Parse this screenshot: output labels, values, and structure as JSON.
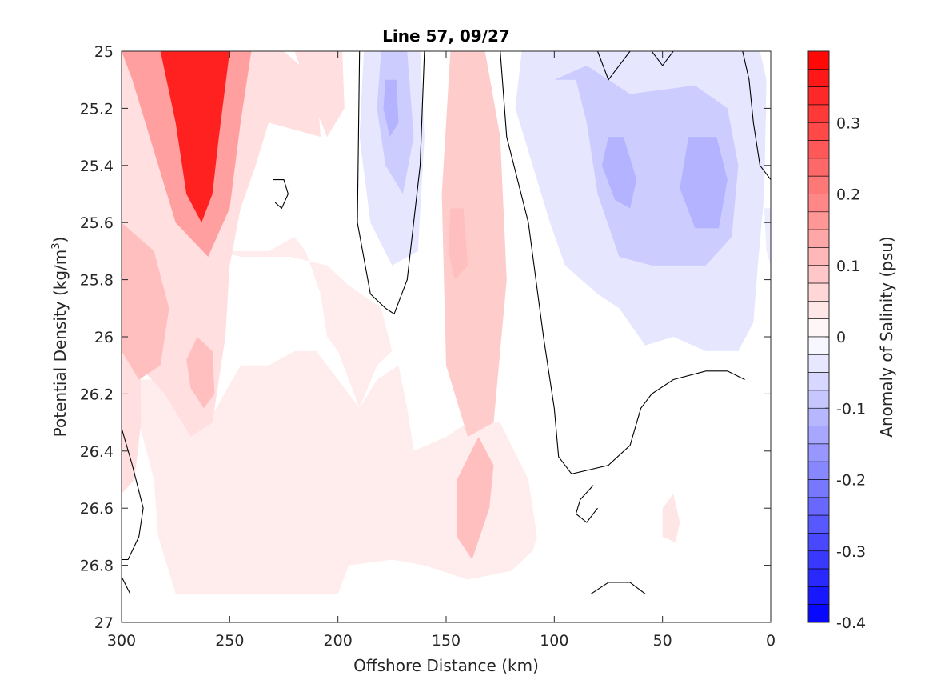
{
  "chart_data": {
    "type": "heatmap",
    "subtype": "filled-contour",
    "title": "Line 57, 09/27",
    "xlabel": "Offshore Distance (km)",
    "ylabel_main": "Potential Density (kg/m",
    "ylabel_sup": "3",
    "ylabel_close": ")",
    "colorbar_label": "Anomaly of Salinity (psu)",
    "xlim": [
      300,
      0
    ],
    "x_reversed": true,
    "ylim": [
      25,
      27
    ],
    "y_reversed": true,
    "x_ticks": [
      300,
      250,
      200,
      150,
      100,
      50,
      0
    ],
    "x_tick_labels": [
      "300",
      "250",
      "200",
      "150",
      "100",
      "50",
      "0"
    ],
    "y_ticks": [
      25,
      25.2,
      25.4,
      25.6,
      25.8,
      26,
      26.2,
      26.4,
      26.6,
      26.8,
      27
    ],
    "y_tick_labels": [
      "25",
      "25.2",
      "25.4",
      "25.6",
      "25.8",
      "26",
      "26.2",
      "26.4",
      "26.6",
      "26.8",
      "27"
    ],
    "clim": [
      -0.4,
      0.4
    ],
    "color_levels": 32,
    "colorbar_ticks": [
      0.3,
      0.2,
      0.1,
      0,
      -0.1,
      -0.2,
      -0.3,
      -0.4
    ],
    "colorbar_tick_labels": [
      "0.3",
      "0.2",
      "0.1",
      "0",
      "-0.1",
      "-0.2",
      "-0.3",
      "-0.4"
    ],
    "colormap": {
      "negative": "#0000ff",
      "zero": "#ffffff",
      "positive": "#ff0000"
    },
    "grid": false,
    "regions": [
      {
        "kind": "pos",
        "level": 0.35,
        "outline": [
          [
            282,
            25
          ],
          [
            250,
            25
          ],
          [
            255,
            25.3
          ],
          [
            258,
            25.5
          ],
          [
            263,
            25.6
          ],
          [
            270,
            25.5
          ],
          [
            275,
            25.25
          ]
        ]
      },
      {
        "kind": "pos",
        "level": 0.15,
        "outline": [
          [
            300,
            25
          ],
          [
            240,
            25
          ],
          [
            245,
            25.25
          ],
          [
            250,
            25.55
          ],
          [
            260,
            25.72
          ],
          [
            275,
            25.6
          ],
          [
            285,
            25.35
          ],
          [
            295,
            25.1
          ]
        ]
      },
      {
        "kind": "pos",
        "level": 0.1,
        "outline": [
          [
            300,
            25.6
          ],
          [
            285,
            25.7
          ],
          [
            278,
            25.9
          ],
          [
            282,
            26.1
          ],
          [
            292,
            26.15
          ],
          [
            300,
            26.05
          ]
        ]
      },
      {
        "kind": "pos",
        "level": 0.1,
        "outline": [
          [
            265,
            26.0
          ],
          [
            258,
            26.05
          ],
          [
            257,
            26.2
          ],
          [
            262,
            26.25
          ],
          [
            268,
            26.18
          ],
          [
            270,
            26.08
          ]
        ]
      },
      {
        "kind": "pos",
        "level": 0.05,
        "outline": [
          [
            300,
            25
          ],
          [
            225,
            25
          ],
          [
            210,
            25.1
          ],
          [
            208,
            25.3
          ],
          [
            232,
            25.25
          ],
          [
            238,
            25.4
          ],
          [
            245,
            25.55
          ],
          [
            250,
            25.75
          ],
          [
            252,
            26
          ],
          [
            258,
            26.3
          ],
          [
            268,
            26.35
          ],
          [
            280,
            26.2
          ],
          [
            292,
            26.1
          ],
          [
            300,
            26.15
          ]
        ]
      },
      {
        "kind": "pos",
        "level": 0.05,
        "outline": [
          [
            220,
            25
          ],
          [
            198,
            25
          ],
          [
            197,
            25.2
          ],
          [
            205,
            25.3
          ],
          [
            213,
            25.15
          ]
        ]
      },
      {
        "kind": "pos",
        "level": 0.08,
        "outline": [
          [
            148,
            25
          ],
          [
            132,
            25
          ],
          [
            125,
            25.3
          ],
          [
            122,
            25.8
          ],
          [
            128,
            26.3
          ],
          [
            140,
            26.35
          ],
          [
            150,
            26.1
          ],
          [
            152,
            25.5
          ]
        ]
      },
      {
        "kind": "pos",
        "level": 0.1,
        "outline": [
          [
            148,
            25.55
          ],
          [
            142,
            25.55
          ],
          [
            140,
            25.75
          ],
          [
            146,
            25.8
          ],
          [
            149,
            25.7
          ]
        ]
      },
      {
        "kind": "pos",
        "level": 0.1,
        "outline": [
          [
            135,
            26.35
          ],
          [
            145,
            26.5
          ],
          [
            145,
            26.7
          ],
          [
            138,
            26.78
          ],
          [
            130,
            26.6
          ],
          [
            128,
            26.45
          ]
        ]
      },
      {
        "kind": "pos",
        "level": 0.05,
        "outline": [
          [
            300,
            25.15
          ],
          [
            295,
            25.25
          ],
          [
            292,
            25.6
          ],
          [
            291,
            26.3
          ],
          [
            294,
            26.5
          ],
          [
            300,
            26.55
          ]
        ]
      },
      {
        "kind": "pos",
        "level": 0.03,
        "outline": [
          [
            300,
            26.15
          ],
          [
            292,
            26.3
          ],
          [
            285,
            26.5
          ],
          [
            283,
            26.7
          ],
          [
            275,
            26.9
          ],
          [
            200,
            26.9
          ],
          [
            195,
            26.8
          ],
          [
            175,
            26.78
          ],
          [
            160,
            26.8
          ],
          [
            140,
            26.85
          ],
          [
            120,
            26.82
          ],
          [
            110,
            26.75
          ],
          [
            108,
            26.7
          ],
          [
            112,
            26.5
          ],
          [
            125,
            26.3
          ],
          [
            140,
            26.3
          ],
          [
            150,
            26.35
          ],
          [
            165,
            26.4
          ],
          [
            168,
            26.25
          ],
          [
            172,
            26.1
          ],
          [
            182,
            26.15
          ],
          [
            190,
            26.25
          ],
          [
            200,
            26.15
          ],
          [
            210,
            26.05
          ],
          [
            220,
            26.05
          ],
          [
            232,
            26.1
          ],
          [
            245,
            26.1
          ],
          [
            260,
            26.3
          ],
          [
            285,
            26.15
          ]
        ]
      },
      {
        "kind": "pos",
        "level": 0.03,
        "outline": [
          [
            255,
            25.7
          ],
          [
            232,
            25.7
          ],
          [
            220,
            25.65
          ],
          [
            215,
            25.7
          ],
          [
            208,
            25.85
          ],
          [
            205,
            26.0
          ],
          [
            200,
            26.05
          ],
          [
            190,
            26.25
          ],
          [
            182,
            26.1
          ],
          [
            175,
            26.05
          ],
          [
            180,
            25.9
          ],
          [
            195,
            25.82
          ],
          [
            205,
            25.75
          ],
          [
            222,
            25.72
          ],
          [
            245,
            25.72
          ]
        ]
      },
      {
        "kind": "pos",
        "level": 0.04,
        "outline": [
          [
            50,
            26.6
          ],
          [
            45,
            26.55
          ],
          [
            42,
            26.65
          ],
          [
            44,
            26.72
          ],
          [
            50,
            26.7
          ]
        ]
      },
      {
        "kind": "pos",
        "level": 0.04,
        "outline": [
          [
            5,
            25.1
          ],
          [
            2,
            25.2
          ],
          [
            3,
            25.35
          ],
          [
            7,
            25.3
          ]
        ]
      },
      {
        "kind": "neg",
        "level": -0.04,
        "outline": [
          [
            188,
            25
          ],
          [
            162,
            25
          ],
          [
            160,
            25.3
          ],
          [
            163,
            25.7
          ],
          [
            175,
            25.75
          ],
          [
            185,
            25.6
          ],
          [
            190,
            25.3
          ]
        ]
      },
      {
        "kind": "neg",
        "level": -0.08,
        "outline": [
          [
            180,
            25
          ],
          [
            168,
            25
          ],
          [
            165,
            25.3
          ],
          [
            170,
            25.5
          ],
          [
            178,
            25.4
          ],
          [
            182,
            25.2
          ]
        ]
      },
      {
        "kind": "neg",
        "level": -0.12,
        "outline": [
          [
            178,
            25.1
          ],
          [
            173,
            25.1
          ],
          [
            172,
            25.25
          ],
          [
            176,
            25.3
          ],
          [
            179,
            25.2
          ]
        ]
      },
      {
        "kind": "neg",
        "level": -0.04,
        "outline": [
          [
            115,
            25
          ],
          [
            5,
            25
          ],
          [
            2,
            25.1
          ],
          [
            3,
            25.5
          ],
          [
            6,
            25.75
          ],
          [
            8,
            25.95
          ],
          [
            15,
            26.05
          ],
          [
            30,
            26.05
          ],
          [
            45,
            26.0
          ],
          [
            58,
            26.03
          ],
          [
            70,
            25.9
          ],
          [
            80,
            25.85
          ],
          [
            95,
            25.75
          ],
          [
            102,
            25.6
          ],
          [
            110,
            25.4
          ],
          [
            118,
            25.2
          ]
        ]
      },
      {
        "kind": "neg",
        "level": -0.08,
        "outline": [
          [
            100,
            25.1
          ],
          [
            90,
            25.1
          ],
          [
            85,
            25.25
          ],
          [
            80,
            25.5
          ],
          [
            70,
            25.72
          ],
          [
            55,
            25.75
          ],
          [
            30,
            25.75
          ],
          [
            18,
            25.65
          ],
          [
            15,
            25.4
          ],
          [
            20,
            25.2
          ],
          [
            35,
            25.12
          ],
          [
            65,
            25.15
          ],
          [
            85,
            25.05
          ]
        ]
      },
      {
        "kind": "neg",
        "level": -0.12,
        "outline": [
          [
            75,
            25.3
          ],
          [
            68,
            25.3
          ],
          [
            62,
            25.45
          ],
          [
            65,
            25.55
          ],
          [
            72,
            25.52
          ],
          [
            78,
            25.4
          ]
        ]
      },
      {
        "kind": "neg",
        "level": -0.12,
        "outline": [
          [
            38,
            25.3
          ],
          [
            25,
            25.3
          ],
          [
            20,
            25.45
          ],
          [
            24,
            25.62
          ],
          [
            35,
            25.62
          ],
          [
            42,
            25.48
          ]
        ]
      },
      {
        "kind": "neg",
        "level": -0.03,
        "outline": [
          [
            3,
            25.55
          ],
          [
            0,
            25.55
          ],
          [
            0,
            25.75
          ],
          [
            2,
            25.7
          ]
        ]
      }
    ],
    "zero_contours": [
      [
        [
          190,
          25
        ],
        [
          191,
          25.6
        ],
        [
          185,
          25.85
        ],
        [
          178,
          25.9
        ],
        [
          174,
          25.92
        ],
        [
          168,
          25.8
        ],
        [
          162,
          25.4
        ],
        [
          160,
          25
        ]
      ],
      [
        [
          125,
          25
        ],
        [
          122,
          25.3
        ],
        [
          112,
          25.6
        ],
        [
          105,
          26.0
        ],
        [
          100,
          26.25
        ],
        [
          98,
          26.42
        ],
        [
          92,
          26.48
        ],
        [
          75,
          26.45
        ],
        [
          65,
          26.38
        ],
        [
          60,
          26.25
        ],
        [
          55,
          26.2
        ],
        [
          45,
          26.15
        ],
        [
          30,
          26.12
        ],
        [
          20,
          26.12
        ],
        [
          12,
          26.15
        ]
      ],
      [
        [
          80,
          25
        ],
        [
          75,
          25.1
        ],
        [
          70,
          25.05
        ],
        [
          65,
          25
        ]
      ],
      [
        [
          55,
          25
        ],
        [
          50,
          25.05
        ],
        [
          45,
          25
        ]
      ],
      [
        [
          13,
          25
        ],
        [
          10,
          25.1
        ],
        [
          8,
          25.25
        ],
        [
          5,
          25.4
        ],
        [
          0,
          25.45
        ]
      ],
      [
        [
          230,
          25.45
        ],
        [
          225,
          25.45
        ],
        [
          223,
          25.5
        ],
        [
          226,
          25.55
        ],
        [
          229,
          25.53
        ]
      ],
      [
        [
          300,
          26.32
        ],
        [
          295,
          26.45
        ],
        [
          290,
          26.6
        ],
        [
          292,
          26.7
        ],
        [
          297,
          26.78
        ],
        [
          300,
          26.78
        ]
      ],
      [
        [
          300,
          26.84
        ],
        [
          296,
          26.9
        ]
      ],
      [
        [
          82,
          26.52
        ],
        [
          88,
          26.57
        ],
        [
          90,
          26.62
        ],
        [
          85,
          26.65
        ],
        [
          80,
          26.6
        ]
      ],
      [
        [
          83,
          26.9
        ],
        [
          75,
          26.86
        ],
        [
          65,
          26.86
        ],
        [
          58,
          26.9
        ]
      ]
    ]
  }
}
